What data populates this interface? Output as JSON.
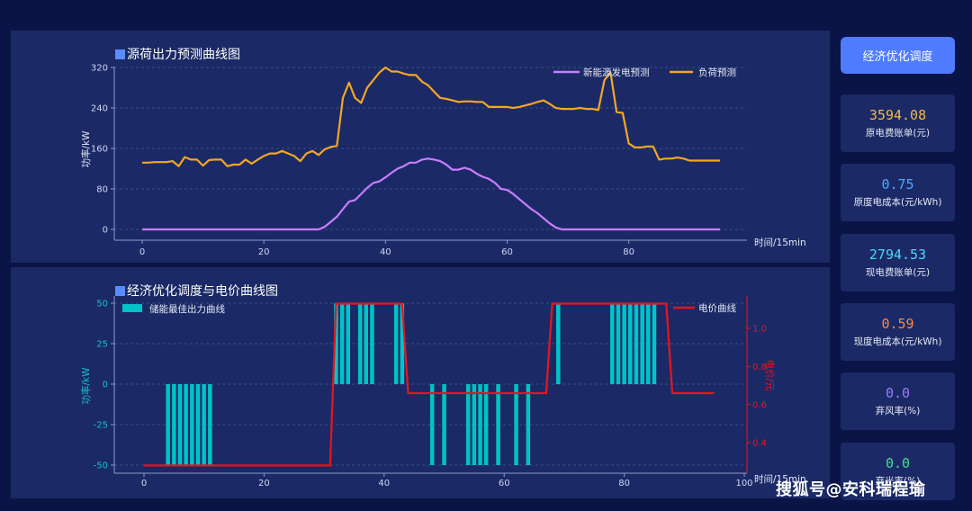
{
  "charts": {
    "top_title": "源荷出力预测曲线图",
    "bottom_title": "经济优化调度与电价曲线图"
  },
  "controls": {
    "optimize_button": "经济优化调度"
  },
  "stats": [
    {
      "value": "3594.08",
      "label": "原电费账单(元)",
      "color": "#f5b942"
    },
    {
      "value": "0.75",
      "label": "原度电成本(元/kWh)",
      "color": "#4aa8ff"
    },
    {
      "value": "2794.53",
      "label": "现电费账单(元)",
      "color": "#4ad8ff"
    },
    {
      "value": "0.59",
      "label": "现度电成本(元/kWh)",
      "color": "#ff8a3c"
    },
    {
      "value": "0.0",
      "label": "弃风率(%)",
      "color": "#9d7bff"
    },
    {
      "value": "0.0",
      "label": "弃光率(%)",
      "color": "#3ee08a"
    }
  ],
  "watermark": "搜狐号@安科瑞程瑜",
  "chart_data": [
    {
      "type": "line",
      "title": "源荷出力预测曲线图",
      "xlabel": "时间/15min",
      "ylabel": "功率/kW",
      "xlim": [
        0,
        95
      ],
      "ylim": [
        -10,
        330
      ],
      "x_ticks": [
        "0",
        "20",
        "40",
        "60",
        "80"
      ],
      "y_ticks": [
        "0",
        "80",
        "160",
        "240",
        "320"
      ],
      "grid": "horizontal dashed",
      "legend_position": "top-right",
      "series": [
        {
          "name": "新能源发电预测",
          "color": "#c77dff",
          "values": [
            0,
            0,
            0,
            0,
            0,
            0,
            0,
            0,
            0,
            0,
            0,
            0,
            0,
            0,
            0,
            0,
            0,
            0,
            0,
            0,
            0,
            0,
            0,
            0,
            0,
            0,
            0,
            0,
            0,
            0,
            5,
            15,
            25,
            40,
            55,
            58,
            70,
            82,
            92,
            95,
            103,
            112,
            120,
            125,
            132,
            132,
            138,
            140,
            138,
            135,
            128,
            118,
            118,
            122,
            118,
            110,
            104,
            100,
            92,
            80,
            78,
            70,
            60,
            50,
            40,
            32,
            22,
            12,
            4,
            0,
            0,
            0,
            0,
            0,
            0,
            0,
            0,
            0,
            0,
            0,
            0,
            0,
            0,
            0,
            0,
            0,
            0,
            0,
            0,
            0,
            0,
            0,
            0,
            0,
            0,
            0
          ]
        },
        {
          "name": "负荷预测",
          "color": "#f5a623",
          "values": [
            132,
            132,
            133,
            133,
            133,
            135,
            125,
            143,
            138,
            138,
            126,
            137,
            138,
            138,
            125,
            128,
            128,
            138,
            130,
            138,
            145,
            150,
            150,
            155,
            150,
            145,
            135,
            150,
            155,
            147,
            158,
            163,
            165,
            260,
            290,
            260,
            250,
            280,
            295,
            310,
            320,
            312,
            312,
            308,
            305,
            305,
            292,
            285,
            272,
            260,
            258,
            255,
            252,
            253,
            253,
            252,
            252,
            242,
            242,
            242,
            242,
            240,
            242,
            245,
            248,
            252,
            255,
            248,
            240,
            238,
            238,
            238,
            240,
            238,
            238,
            236,
            295,
            310,
            232,
            230,
            170,
            162,
            162,
            164,
            164,
            138,
            140,
            140,
            142,
            140,
            136,
            136,
            136,
            136,
            136,
            136
          ]
        }
      ]
    },
    {
      "type": "bar",
      "title": "经济优化调度与电价曲线图",
      "xlabel": "时间/15min",
      "ylabel": "功率/kW",
      "y2label": "电价/元",
      "xlim": [
        -5,
        100
      ],
      "ylim": [
        -55,
        55
      ],
      "y2lim": [
        0.28,
        1.2
      ],
      "x_ticks": [
        "0",
        "20",
        "40",
        "60",
        "80",
        "100"
      ],
      "y_ticks": [
        "-50",
        "-25",
        "0",
        "25",
        "50"
      ],
      "y2_ticks": [
        "0.4",
        "0.6",
        "0.8",
        "1.0"
      ],
      "grid": "horizontal dashed",
      "legend_position": "top-left / top-right",
      "series": [
        {
          "name": "储能最佳出力曲线",
          "color": "#00c2c7",
          "values": [
            0,
            0,
            0,
            0,
            -50,
            -50,
            -50,
            -50,
            -50,
            -50,
            -50,
            -50,
            0,
            0,
            0,
            0,
            0,
            0,
            0,
            0,
            0,
            0,
            0,
            0,
            0,
            0,
            0,
            0,
            0,
            0,
            0,
            0,
            50,
            50,
            50,
            0,
            50,
            50,
            50,
            0,
            0,
            0,
            50,
            50,
            0,
            0,
            0,
            0,
            -50,
            0,
            -50,
            0,
            0,
            0,
            -50,
            -50,
            -50,
            -50,
            0,
            -50,
            0,
            0,
            -50,
            0,
            -50,
            0,
            0,
            0,
            0,
            50,
            0,
            0,
            0,
            0,
            0,
            0,
            0,
            0,
            50,
            50,
            50,
            50,
            50,
            50,
            50,
            50,
            0,
            0,
            0,
            0,
            0,
            0,
            0,
            0,
            0,
            0
          ]
        },
        {
          "name": "电价曲线",
          "color": "#e8141c",
          "axis": "y2",
          "x": [
            0,
            31,
            32,
            43,
            44,
            67,
            68,
            87,
            88,
            95
          ],
          "values": [
            0.28,
            0.28,
            1.13,
            1.13,
            0.66,
            0.66,
            1.13,
            1.13,
            0.66,
            0.66
          ]
        }
      ]
    }
  ]
}
